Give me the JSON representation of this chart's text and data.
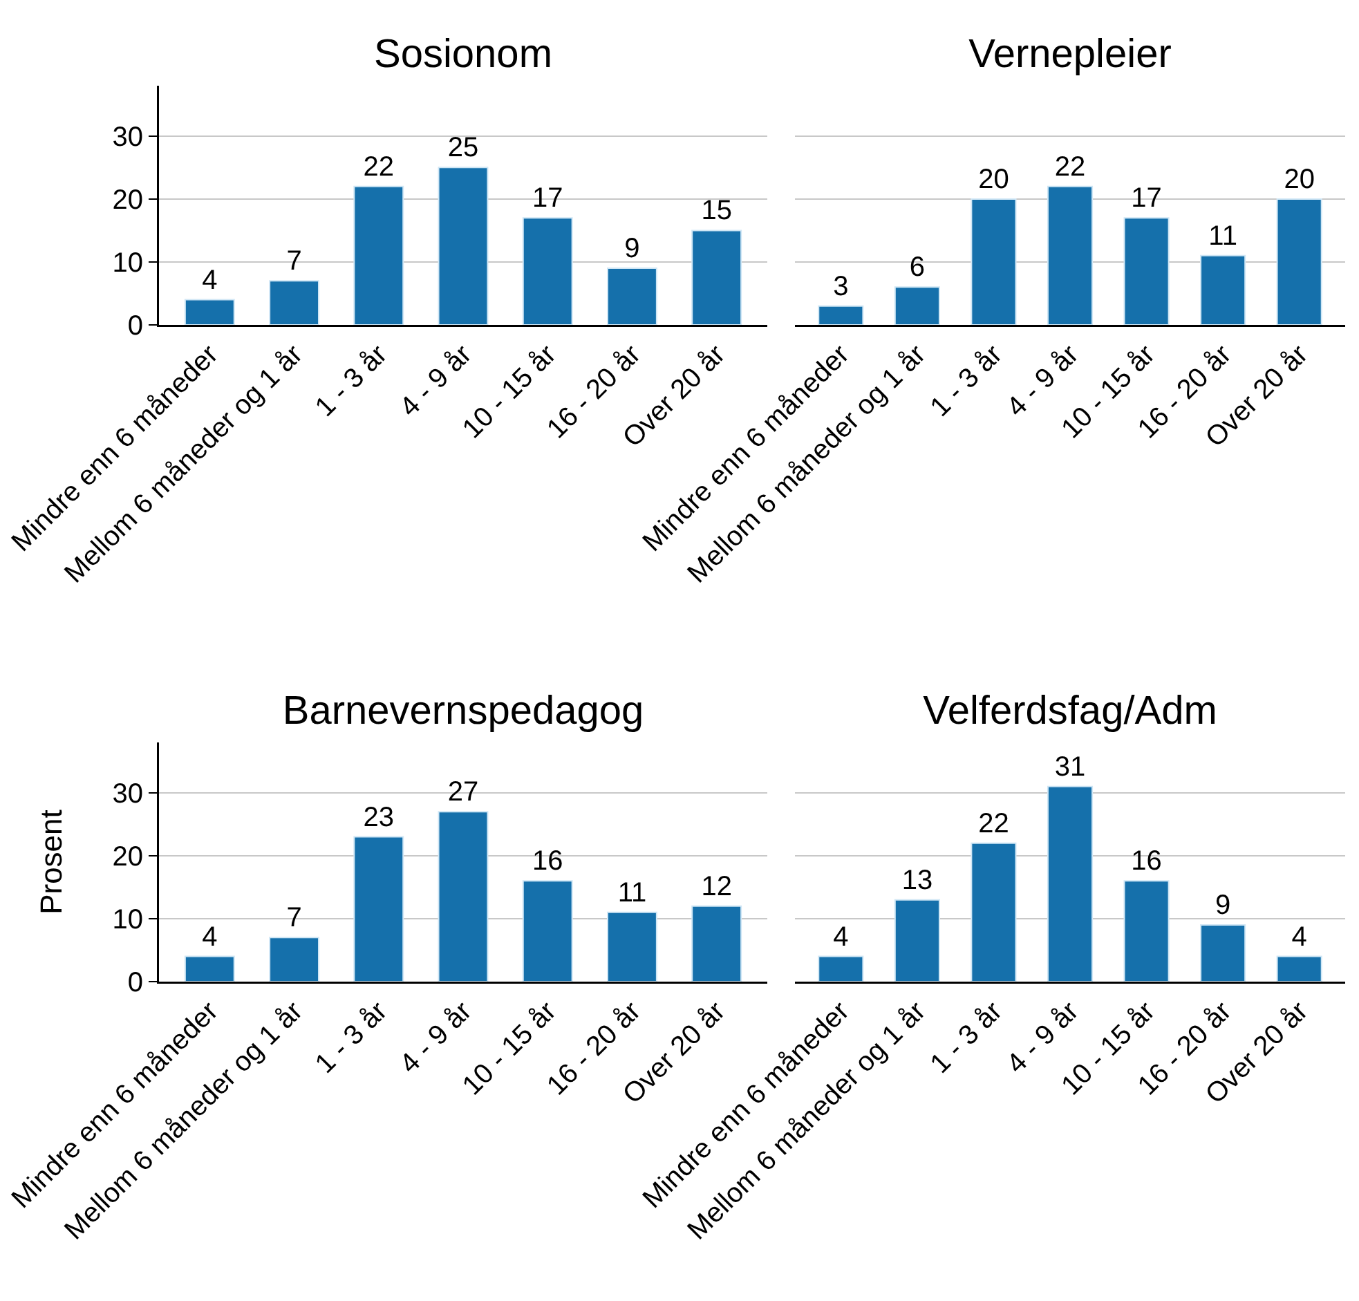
{
  "chart_data": [
    {
      "type": "bar",
      "title": "Sosionom",
      "categories": [
        "Mindre enn 6 måneder",
        "Mellom 6 måneder og 1 år",
        "1 - 3 år",
        "4 - 9 år",
        "10 - 15 år",
        "16 - 20 år",
        "Over 20 år"
      ],
      "values": [
        4,
        7,
        22,
        25,
        17,
        9,
        15
      ],
      "color": "#1570ab",
      "ylim": [
        0,
        38
      ],
      "yticks": [
        0,
        10,
        20,
        30
      ],
      "grid": "y",
      "data_labels": true
    },
    {
      "type": "bar",
      "title": "Vernepleier",
      "categories": [
        "Mindre enn 6 måneder",
        "Mellom 6 måneder og 1 år",
        "1 - 3 år",
        "4 - 9 år",
        "10 - 15 år",
        "16 - 20 år",
        "Over 20 år"
      ],
      "values": [
        3,
        6,
        20,
        22,
        17,
        11,
        20
      ],
      "color": "#1570ab",
      "yticks": [
        0,
        10,
        20,
        30
      ],
      "grid": "y",
      "data_labels": true,
      "tick_labels": "x"
    },
    {
      "type": "bar",
      "title": "Barnevernspedagog",
      "ylabel": "Prosent",
      "categories": [
        "Mindre enn 6 måneder",
        "Mellom 6 måneder og 1 år",
        "1 - 3 år",
        "4 - 9 år",
        "10 - 15 år",
        "16 - 20 år",
        "Over 20 år"
      ],
      "values": [
        4,
        7,
        23,
        27,
        16,
        11,
        12
      ],
      "color": "#1570ab",
      "ylim": [
        0,
        38
      ],
      "yticks": [
        0,
        10,
        20,
        30
      ],
      "grid": "y",
      "data_labels": true
    },
    {
      "type": "bar",
      "title": "Velferdsfag/Adm",
      "categories": [
        "Mindre enn 6 måneder",
        "Mellom 6 måneder og 1 år",
        "1 - 3 år",
        "4 - 9 år",
        "10 - 15 år",
        "16 - 20 år",
        "Over 20 år"
      ],
      "values": [
        4,
        13,
        22,
        31,
        16,
        9,
        4
      ],
      "color": "#1570ab",
      "yticks": [
        0,
        10,
        20,
        30
      ],
      "grid": "y",
      "data_labels": true,
      "tick_labels": "x"
    }
  ]
}
